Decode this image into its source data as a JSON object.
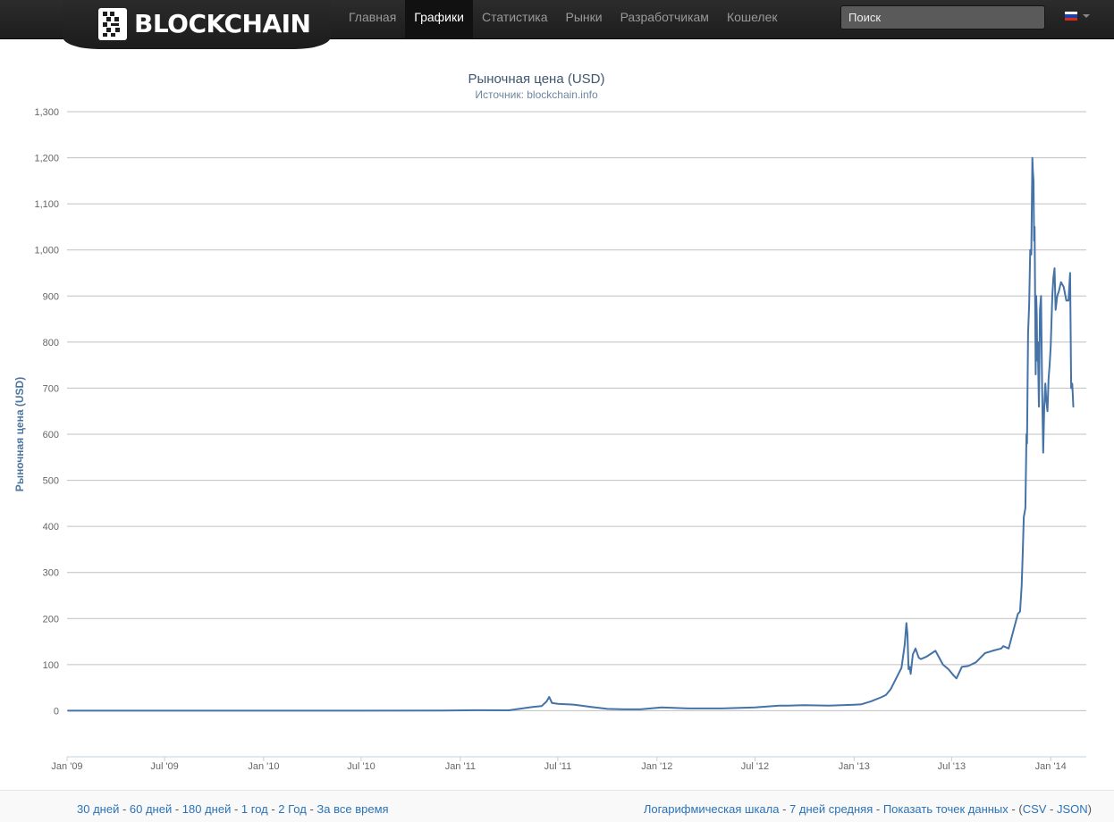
{
  "header": {
    "logo_text": "BLOCKCHAIN",
    "nav": [
      "Главная",
      "Графики",
      "Статистика",
      "Рынки",
      "Разработчикам",
      "Кошелек"
    ],
    "active_nav": "Графики",
    "search_placeholder": "Поиск",
    "language_flag": "russia-flag-icon"
  },
  "chart_data": {
    "type": "line",
    "title": "Рыночная цена (USD)",
    "subtitle": "Источник: blockchain.info",
    "xlabel": "",
    "ylabel": "Рыночная цена (USD)",
    "ylim": [
      -100,
      1300
    ],
    "xlim": [
      "2009-01-01",
      "2014-03-08"
    ],
    "y_ticks": [
      "0",
      "100",
      "200",
      "300",
      "400",
      "500",
      "600",
      "700",
      "800",
      "900",
      "1,000",
      "1,100",
      "1,200",
      "1,300"
    ],
    "x_ticks": [
      "Jan '09",
      "Jul '09",
      "Jan '10",
      "Jul '10",
      "Jan '11",
      "Jul '11",
      "Jan '12",
      "Jul '12",
      "Jan '13",
      "Jul '13",
      "Jan '14"
    ],
    "grid": true,
    "legend": "none",
    "line_color": "#4572a7",
    "series": [
      {
        "x": [
          "2009-01-03",
          "2010-07-01",
          "2010-12-01",
          "2011-02-01",
          "2011-04-01",
          "2011-05-15",
          "2011-06-01",
          "2011-06-10",
          "2011-06-15",
          "2011-06-20",
          "2011-07-01",
          "2011-08-01",
          "2011-09-01",
          "2011-10-01",
          "2011-11-01",
          "2011-12-01",
          "2012-01-10",
          "2012-03-01",
          "2012-05-01",
          "2012-07-01",
          "2012-08-15",
          "2012-09-01",
          "2012-10-01",
          "2012-11-15",
          "2013-01-01",
          "2013-01-15",
          "2013-02-01",
          "2013-02-20",
          "2013-03-01",
          "2013-03-10",
          "2013-03-20",
          "2013-03-30",
          "2013-04-05",
          "2013-04-08",
          "2013-04-10",
          "2013-04-12",
          "2013-04-14",
          "2013-04-16",
          "2013-04-20",
          "2013-04-25",
          "2013-05-01",
          "2013-05-05",
          "2013-05-15",
          "2013-06-01",
          "2013-06-15",
          "2013-06-25",
          "2013-07-05",
          "2013-07-10",
          "2013-07-20",
          "2013-08-01",
          "2013-08-15",
          "2013-09-01",
          "2013-09-15",
          "2013-10-01",
          "2013-10-05",
          "2013-10-15",
          "2013-10-25",
          "2013-11-01",
          "2013-11-05",
          "2013-11-08",
          "2013-11-10",
          "2013-11-12",
          "2013-11-15",
          "2013-11-17",
          "2013-11-18",
          "2013-11-19",
          "2013-11-20",
          "2013-11-22",
          "2013-11-24",
          "2013-11-26",
          "2013-11-28",
          "2013-11-29",
          "2013-11-30",
          "2013-12-01",
          "2013-12-02",
          "2013-12-04",
          "2013-12-05",
          "2013-12-06",
          "2013-12-07",
          "2013-12-08",
          "2013-12-10",
          "2013-12-12",
          "2013-12-14",
          "2013-12-16",
          "2013-12-18",
          "2013-12-19",
          "2013-12-20",
          "2013-12-22",
          "2013-12-24",
          "2013-12-26",
          "2013-12-28",
          "2013-12-30",
          "2014-01-01",
          "2014-01-04",
          "2014-01-06",
          "2014-01-08",
          "2014-01-10",
          "2014-01-13",
          "2014-01-16",
          "2014-01-20",
          "2014-01-25",
          "2014-01-30",
          "2014-02-03",
          "2014-02-06",
          "2014-02-08",
          "2014-02-10",
          "2014-02-12"
        ],
        "y": [
          0,
          0,
          0.3,
          1,
          0.9,
          8,
          10,
          20,
          30,
          17,
          15,
          13,
          8,
          4,
          3,
          3,
          7,
          5,
          5,
          7,
          11,
          11,
          12,
          11,
          13,
          14,
          20,
          29,
          34,
          47,
          70,
          93,
          143,
          190,
          165,
          90,
          95,
          80,
          122,
          135,
          115,
          112,
          117,
          130,
          100,
          90,
          76,
          70,
          95,
          97,
          105,
          125,
          130,
          135,
          140,
          135,
          180,
          210,
          215,
          270,
          340,
          420,
          440,
          600,
          580,
          700,
          820,
          880,
          1000,
          990,
          1200,
          1170,
          1150,
          1020,
          1050,
          730,
          900,
          860,
          760,
          800,
          660,
          870,
          900,
          700,
          560,
          610,
          660,
          710,
          670,
          650,
          720,
          750,
          790,
          900,
          940,
          960,
          870,
          900,
          910,
          930,
          920,
          890,
          890,
          950,
          700,
          710,
          660
        ]
      }
    ]
  },
  "footer": {
    "left_links": [
      "30 дней",
      "60 дней",
      "180 дней",
      "1 год",
      "2 Год",
      "За все время"
    ],
    "right_links": [
      "Логарифмическая шкала",
      "7 дней средняя",
      "Показать точек данных"
    ],
    "export_prefix": "(",
    "export_links": [
      "CSV",
      "JSON"
    ],
    "export_suffix": ")",
    "separator": " - "
  }
}
